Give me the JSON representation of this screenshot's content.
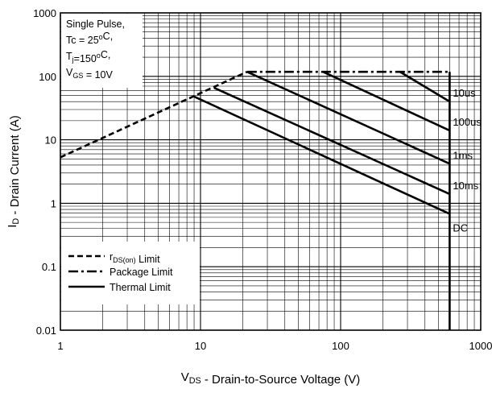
{
  "chart_data": {
    "type": "line",
    "xscale": "log",
    "yscale": "log",
    "xlim": [
      1,
      1000
    ],
    "ylim": [
      0.01,
      1000
    ],
    "grid": true,
    "xlabel": {
      "main": "V",
      "sub": "DS",
      "rest": " - Drain-to-Source Voltage (V)"
    },
    "ylabel": {
      "main": "I",
      "sub": "D",
      "rest": " - Drain Current (A)"
    },
    "xticks": [
      {
        "value": 1,
        "label": "1"
      },
      {
        "value": 10,
        "label": "10"
      },
      {
        "value": 100,
        "label": "100"
      },
      {
        "value": 1000,
        "label": "1000"
      }
    ],
    "yticks": [
      {
        "value": 1000,
        "label": "1000"
      },
      {
        "value": 100,
        "label": "100"
      },
      {
        "value": 10,
        "label": "10"
      },
      {
        "value": 1,
        "label": "1"
      },
      {
        "value": 0.1,
        "label": "0.1"
      },
      {
        "value": 0.01,
        "label": "0.01"
      }
    ],
    "conditions": [
      [
        {
          "t": "Single Pulse,"
        }
      ],
      [
        {
          "t": "Tc = 25"
        },
        {
          "t": "o",
          "sup": true
        },
        {
          "t": "C,"
        }
      ],
      [
        {
          "t": "T"
        },
        {
          "t": "j",
          "sub": true
        },
        {
          "t": "=150"
        },
        {
          "t": "o",
          "sup": true
        },
        {
          "t": "C,"
        }
      ],
      [
        {
          "t": "V"
        },
        {
          "t": "GS",
          "sub": true
        },
        {
          "t": " = 10V"
        }
      ]
    ],
    "legend": [
      {
        "style": "dashed",
        "parts": [
          {
            "t": "r"
          },
          {
            "t": "DS(on)",
            "sub": true
          },
          {
            "t": " Limit"
          }
        ]
      },
      {
        "style": "dashdot",
        "parts": [
          {
            "t": "Package Limit"
          }
        ]
      },
      {
        "style": "solid",
        "parts": [
          {
            "t": "Thermal Limit"
          }
        ]
      }
    ],
    "series": [
      {
        "style": "dashed",
        "points": [
          [
            1,
            5.3
          ],
          [
            21.5,
            118
          ]
        ]
      },
      {
        "style": "dashdot",
        "points": [
          [
            21.5,
            118
          ],
          [
            600,
            118
          ]
        ]
      },
      {
        "name": "10us",
        "style": "solid",
        "points": [
          [
            265,
            118
          ],
          [
            600,
            40
          ]
        ]
      },
      {
        "name": "100us",
        "style": "solid",
        "points": [
          [
            75,
            118
          ],
          [
            600,
            14
          ]
        ]
      },
      {
        "name": "1ms",
        "style": "solid",
        "points": [
          [
            21.5,
            118
          ],
          [
            600,
            4.2
          ]
        ]
      },
      {
        "name": "10ms",
        "style": "solid",
        "points": [
          [
            12.5,
            66
          ],
          [
            600,
            1.4
          ]
        ]
      },
      {
        "name": "DC",
        "style": "solid",
        "points": [
          [
            9,
            48
          ],
          [
            600,
            0.68
          ]
        ]
      },
      {
        "style": "solid",
        "points": [
          [
            600,
            118
          ],
          [
            600,
            0.01
          ]
        ]
      }
    ]
  }
}
